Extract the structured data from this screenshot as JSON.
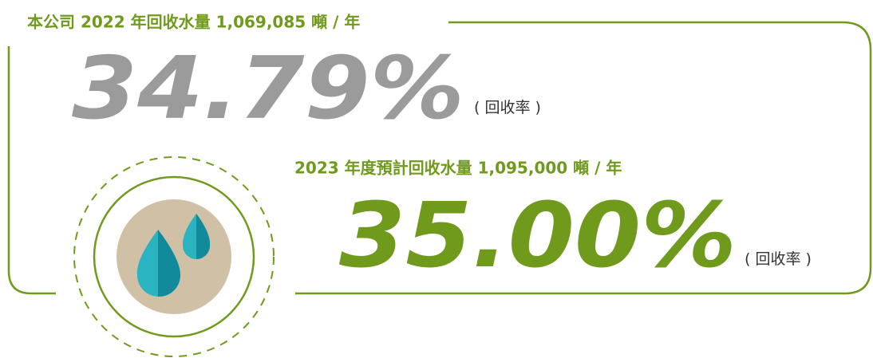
{
  "items": [
    {
      "heading": "本公司 2022 年回收水量 1,069,085 噸 / 年",
      "rate": "34.79%",
      "note": "( 回收率 )"
    },
    {
      "heading": "2023 年度預計回收水量 1,095,000 噸 / 年",
      "rate": "35.00%",
      "note": "( 回收率 )"
    }
  ]
}
